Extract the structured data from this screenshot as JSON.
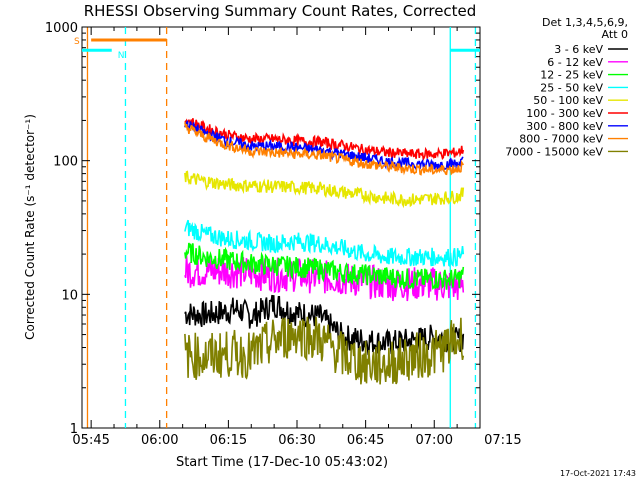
{
  "chart_data": {
    "type": "line",
    "title": "RHESSI Observing Summary Count Rates, Corrected",
    "xlabel": "Start Time (17-Dec-10 05:43:02)",
    "ylabel": "Corrected Count Rate (s⁻¹ detector⁻¹)",
    "x_range_minutes": [
      -2,
      85
    ],
    "y_range": [
      1,
      1000
    ],
    "y_scale": "log",
    "x_ticks": [
      {
        "label": "05:45",
        "minute": 0
      },
      {
        "label": "06:00",
        "minute": 15
      },
      {
        "label": "06:15",
        "minute": 30
      },
      {
        "label": "06:30",
        "minute": 45
      },
      {
        "label": "06:45",
        "minute": 60
      },
      {
        "label": "07:00",
        "minute": 75
      },
      {
        "label": "07:15",
        "minute": 90
      }
    ],
    "y_ticks": [
      {
        "label": "1",
        "value": 1
      },
      {
        "label": "10",
        "value": 10
      },
      {
        "label": "100",
        "value": 100
      },
      {
        "label": "1000",
        "value": 1000
      }
    ],
    "legend": {
      "header_line1": "Det 1,3,4,5,6,9,",
      "header_line2": "Att 0",
      "placement": "right"
    },
    "series": [
      {
        "name": "3 - 6 keV",
        "color": "#000000",
        "x": [
          20.5,
          25,
          30,
          32,
          35,
          40,
          45,
          50,
          55,
          60,
          65,
          70,
          75,
          80,
          81.5
        ],
        "values": [
          7.2,
          7.0,
          7.5,
          7.8,
          6.8,
          8.5,
          7.2,
          6.8,
          4.8,
          4.5,
          4.3,
          4.5,
          4.8,
          4.5,
          4.8
        ]
      },
      {
        "name": "6 - 12 keV",
        "color": "#ff00ff",
        "x": [
          20.5,
          25,
          30,
          35,
          40,
          45,
          50,
          55,
          60,
          65,
          70,
          75,
          80,
          81.5
        ],
        "values": [
          15,
          15,
          15,
          14.5,
          14,
          14,
          13.5,
          13,
          12.5,
          12,
          12,
          12,
          11.5,
          12
        ]
      },
      {
        "name": "12 - 25 keV",
        "color": "#00ff00",
        "x": [
          20.5,
          25,
          30,
          35,
          40,
          45,
          50,
          55,
          60,
          65,
          70,
          75,
          80,
          81.5
        ],
        "values": [
          21,
          19,
          18,
          17,
          16.5,
          16,
          15.5,
          14.5,
          14,
          13.5,
          13,
          13,
          13,
          14
        ]
      },
      {
        "name": "25 - 50 keV",
        "color": "#00ffff",
        "x": [
          20.5,
          25,
          30,
          35,
          40,
          45,
          50,
          55,
          60,
          65,
          70,
          75,
          80,
          81.5
        ],
        "values": [
          32,
          28,
          26,
          25,
          24,
          25,
          24,
          22,
          20,
          19,
          19,
          19,
          19,
          20
        ]
      },
      {
        "name": "50 - 100 keV",
        "color": "#e6e600",
        "x": [
          20.5,
          25,
          30,
          35,
          40,
          45,
          50,
          55,
          60,
          65,
          70,
          75,
          80,
          81.5
        ],
        "values": [
          75,
          70,
          66,
          65,
          64,
          63,
          62,
          58,
          55,
          52,
          51,
          52,
          54,
          57
        ]
      },
      {
        "name": "100 - 300 keV",
        "color": "#ff0000",
        "x": [
          20.5,
          25,
          30,
          35,
          40,
          45,
          50,
          55,
          60,
          65,
          70,
          75,
          80,
          81.5
        ],
        "values": [
          205,
          175,
          155,
          145,
          145,
          140,
          138,
          130,
          120,
          115,
          112,
          112,
          115,
          122
        ]
      },
      {
        "name": "300 - 800 keV",
        "color": "#0000ff",
        "x": [
          20.5,
          25,
          30,
          35,
          40,
          45,
          50,
          55,
          60,
          65,
          70,
          75,
          80,
          81.5
        ],
        "values": [
          190,
          160,
          140,
          128,
          128,
          125,
          120,
          112,
          105,
          98,
          95,
          93,
          95,
          100
        ]
      },
      {
        "name": "800 - 7000 keV",
        "color": "#ff8000",
        "x": [
          20.5,
          25,
          30,
          35,
          40,
          45,
          50,
          55,
          60,
          65,
          70,
          75,
          80,
          81.5
        ],
        "values": [
          180,
          150,
          130,
          118,
          115,
          112,
          110,
          102,
          95,
          90,
          87,
          85,
          87,
          92
        ]
      },
      {
        "name": "7000 - 15000 keV",
        "color": "#808000",
        "x": [
          20.5,
          25,
          30,
          35,
          40,
          45,
          50,
          55,
          60,
          65,
          70,
          75,
          80,
          81.5
        ],
        "values": [
          3.5,
          3.4,
          3.6,
          3.5,
          4.5,
          5.2,
          4.6,
          3.5,
          3.0,
          3.0,
          3.4,
          3.6,
          4.5,
          5.0
        ]
      }
    ],
    "saa_flag": {
      "label": "S",
      "color": "#ff8000",
      "x_start": 0,
      "x_end": 16.5,
      "value": 800
    },
    "night_flag": {
      "label": "N",
      "color": "#00ffff",
      "segments": [
        [
          -2,
          4.5
        ],
        [
          78.5,
          85
        ]
      ],
      "value": 670
    },
    "vlines": [
      {
        "x": -0.8,
        "color": "#ff8000",
        "style": "solid"
      },
      {
        "x": 7.5,
        "color": "#00ffff",
        "style": "dashed"
      },
      {
        "x": 16.5,
        "color": "#ff8000",
        "style": "dashed"
      },
      {
        "x": 78.5,
        "color": "#00ffff",
        "style": "solid"
      },
      {
        "x": 84,
        "color": "#00ffff",
        "style": "dashed"
      }
    ]
  },
  "footer": {
    "timestamp": "17-Oct-2021 17:43"
  }
}
